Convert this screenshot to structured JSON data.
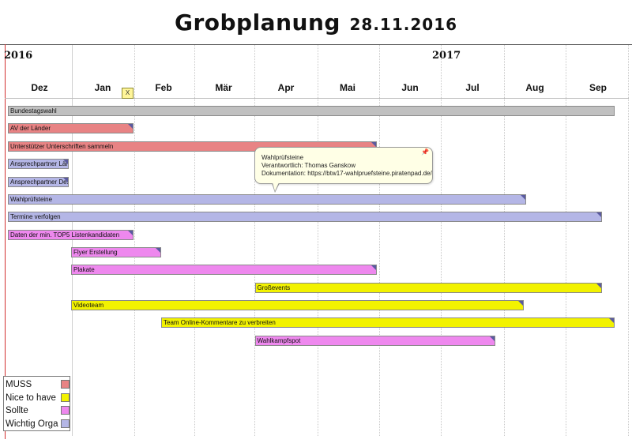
{
  "title": {
    "main": "Grobplanung",
    "date": "28.11.2016"
  },
  "years": [
    {
      "label": "2016",
      "month": "Dez"
    },
    {
      "label": "2017",
      "month": "Mai"
    }
  ],
  "timeline": {
    "months": [
      "Dez",
      "Jan",
      "Feb",
      "Mär",
      "Apr",
      "Mai",
      "Jun",
      "Jul",
      "Aug",
      "Sep"
    ],
    "today_marker": "X"
  },
  "colors": {
    "MUSS": "#e88384",
    "Nice to have": "#f2f200",
    "Sollte": "#ee88ee",
    "Wichtig Orga": "#b4b6e6",
    "neutral": "#c0c0c0"
  },
  "tasks": [
    {
      "label": "Bundestagswahl",
      "category": "neutral",
      "start": "2016-12-01",
      "end": "2017-09-24"
    },
    {
      "label": "AV der Länder",
      "category": "MUSS",
      "start": "2016-12-01",
      "end": "2017-02-01"
    },
    {
      "label": "Unterstützer Unterschriften sammeln",
      "category": "MUSS",
      "start": "2016-12-01",
      "end": "2017-05-31"
    },
    {
      "label": "Ansprechpartner Länder",
      "category": "Wichtig Orga",
      "start": "2016-12-01",
      "end": "2016-12-31"
    },
    {
      "label": "Ansprechpartner Des",
      "category": "Wichtig Orga",
      "start": "2016-12-01",
      "end": "2016-12-31"
    },
    {
      "label": "Wahlprüfsteine",
      "category": "Wichtig Orga",
      "start": "2016-12-01",
      "end": "2017-08-12"
    },
    {
      "label": "Termine verfolgen",
      "category": "Wichtig Orga",
      "start": "2016-12-01",
      "end": "2017-09-18"
    },
    {
      "label": "Daten der min. TOP5 Listenkandidaten",
      "category": "Sollte",
      "start": "2016-12-01",
      "end": "2017-02-01"
    },
    {
      "label": "Flyer Erstellung",
      "category": "Sollte",
      "start": "2017-01-01",
      "end": "2017-02-14"
    },
    {
      "label": "Plakate",
      "category": "Sollte",
      "start": "2017-01-01",
      "end": "2017-05-31"
    },
    {
      "label": "Großevents",
      "category": "Nice to have",
      "start": "2017-04-01",
      "end": "2017-09-18"
    },
    {
      "label": "Videoteam",
      "category": "Nice to have",
      "start": "2017-01-01",
      "end": "2017-08-11"
    },
    {
      "label": "Team Online-Kommentare zu verbreiten",
      "category": "Nice to have",
      "start": "2017-02-14",
      "end": "2017-09-24"
    },
    {
      "label": "Wahlkampfspot",
      "category": "Sollte",
      "start": "2017-04-01",
      "end": "2017-07-28"
    }
  ],
  "tooltip": {
    "lines": [
      "Wahlprüfsteine",
      "Verantwortlich: Thomas Ganskow",
      "Dokumentation: https://btw17-wahlpruefsteine.piratenpad.de/"
    ]
  },
  "legend": [
    {
      "label": "MUSS",
      "color": "#e88384"
    },
    {
      "label": "Nice to have",
      "color": "#f2f200"
    },
    {
      "label": "Sollte",
      "color": "#ee88ee"
    },
    {
      "label": "Wichtig Orga",
      "color": "#b4b6e6"
    }
  ]
}
